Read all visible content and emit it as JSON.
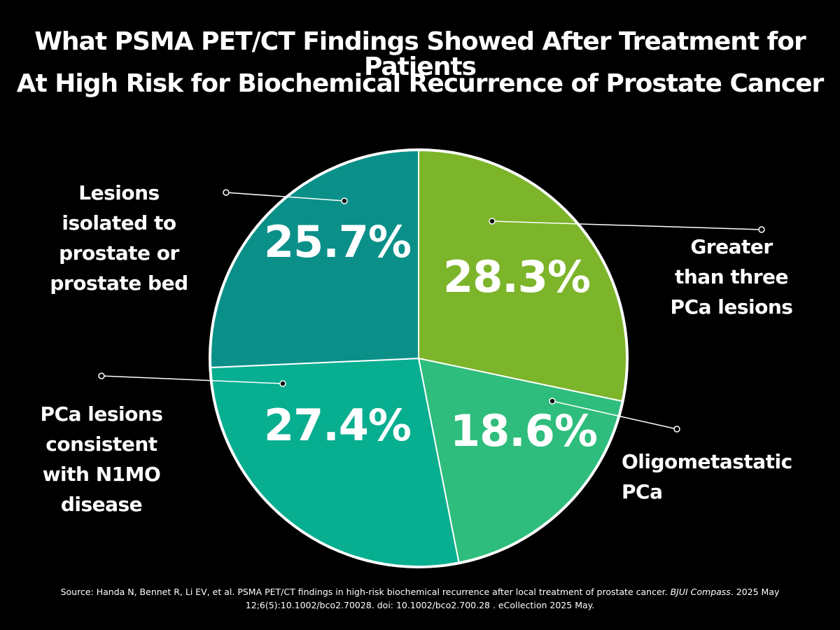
{
  "title": {
    "line1": "What PSMA PET/CT Findings Showed After Treatment for  Patients",
    "line2": "At High Risk for Biochemical Recurrence of Prostate Cancer"
  },
  "chart_data": {
    "type": "pie",
    "title": "What PSMA PET/CT Findings Showed After Treatment for Patients At High Risk for Biochemical Recurrence of Prostate Cancer",
    "start_angle_deg": 0,
    "direction": "clockwise",
    "slices": [
      {
        "label_lines": [
          "Greater",
          "than three",
          "PCa lesions"
        ],
        "value": 28.3,
        "display": "28.3%",
        "color": "#7cb52a"
      },
      {
        "label_lines": [
          "Oligometastatic",
          "PCa"
        ],
        "value": 18.6,
        "display": "18.6%",
        "color": "#2ebd7c"
      },
      {
        "label_lines": [
          "PCa lesions",
          "consistent",
          "with N1MO",
          "disease"
        ],
        "value": 27.4,
        "display": "27.4%",
        "color": "#08ae90"
      },
      {
        "label_lines": [
          "Lesions",
          "isolated to",
          "prostate or",
          "prostate bed"
        ],
        "value": 25.7,
        "display": "25.7%",
        "color": "#0a9089"
      }
    ]
  },
  "source": {
    "prefix": "Source:  Handa N, Bennet R, Li EV, et al. PSMA PET/CT findings in high-risk biochemical recurrence after local treatment of prostate cancer. ",
    "journal": "BJUI Compass",
    "suffix": ". 2025 May 12;6(5):10.1002/bco2.70028. doi: 10.1002/bco2.700.28 . eCollection 2025 May."
  }
}
